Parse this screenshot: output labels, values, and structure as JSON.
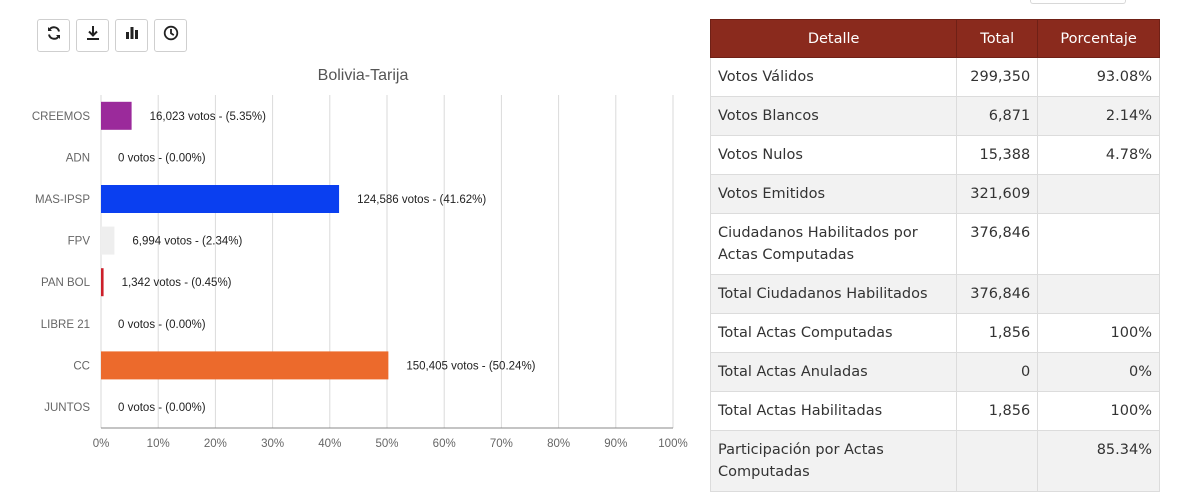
{
  "toolbar": {
    "buttons": [
      {
        "name": "refresh-button",
        "icon": "refresh-icon"
      },
      {
        "name": "download-button",
        "icon": "download-icon"
      },
      {
        "name": "chart-button",
        "icon": "bar-chart-icon"
      },
      {
        "name": "history-button",
        "icon": "clock-icon"
      }
    ]
  },
  "chart_data": {
    "type": "bar",
    "orientation": "horizontal",
    "title": "Bolivia-Tarija",
    "categories": [
      "CREEMOS",
      "ADN",
      "MAS-IPSP",
      "FPV",
      "PAN BOL",
      "LIBRE 21",
      "CC",
      "JUNTOS"
    ],
    "values": [
      5.35,
      0.0,
      41.62,
      2.34,
      0.45,
      0.0,
      50.24,
      0.0
    ],
    "data_labels": [
      "16,023 votos - (5.35%)",
      "0 votos - (0.00%)",
      "124,586 votos - (41.62%)",
      "6,994 votos - (2.34%)",
      "1,342 votos - (0.45%)",
      "0 votos - (0.00%)",
      "150,405 votos - (50.24%)",
      "0 votos - (0.00%)"
    ],
    "colors": [
      "#9b2a9b",
      "#d0d0d0",
      "#0a3ff0",
      "#eeeeee",
      "#cc1f2a",
      "#d0d0d0",
      "#ec6a2c",
      "#d0d0d0"
    ],
    "xlim": [
      0,
      100
    ],
    "xticks": [
      "0%",
      "10%",
      "20%",
      "30%",
      "40%",
      "50%",
      "60%",
      "70%",
      "80%",
      "90%",
      "100%"
    ],
    "grid": true
  },
  "table": {
    "headers": [
      "Detalle",
      "Total",
      "Porcentaje"
    ],
    "rows": [
      [
        "Votos Válidos",
        "299,350",
        "93.08%"
      ],
      [
        "Votos Blancos",
        "6,871",
        "2.14%"
      ],
      [
        "Votos Nulos",
        "15,388",
        "4.78%"
      ],
      [
        "Votos Emitidos",
        "321,609",
        ""
      ],
      [
        "Ciudadanos Habilitados por Actas Computadas",
        "376,846",
        ""
      ],
      [
        "Total Ciudadanos Habilitados",
        "376,846",
        ""
      ],
      [
        "Total Actas Computadas",
        "1,856",
        "100%"
      ],
      [
        "Total Actas Anuladas",
        "0",
        "0%"
      ],
      [
        "Total Actas Habilitadas",
        "1,856",
        "100%"
      ],
      [
        "Participación por Actas Computadas",
        "",
        "85.34%"
      ]
    ],
    "header_color": "#8a2a1d"
  }
}
